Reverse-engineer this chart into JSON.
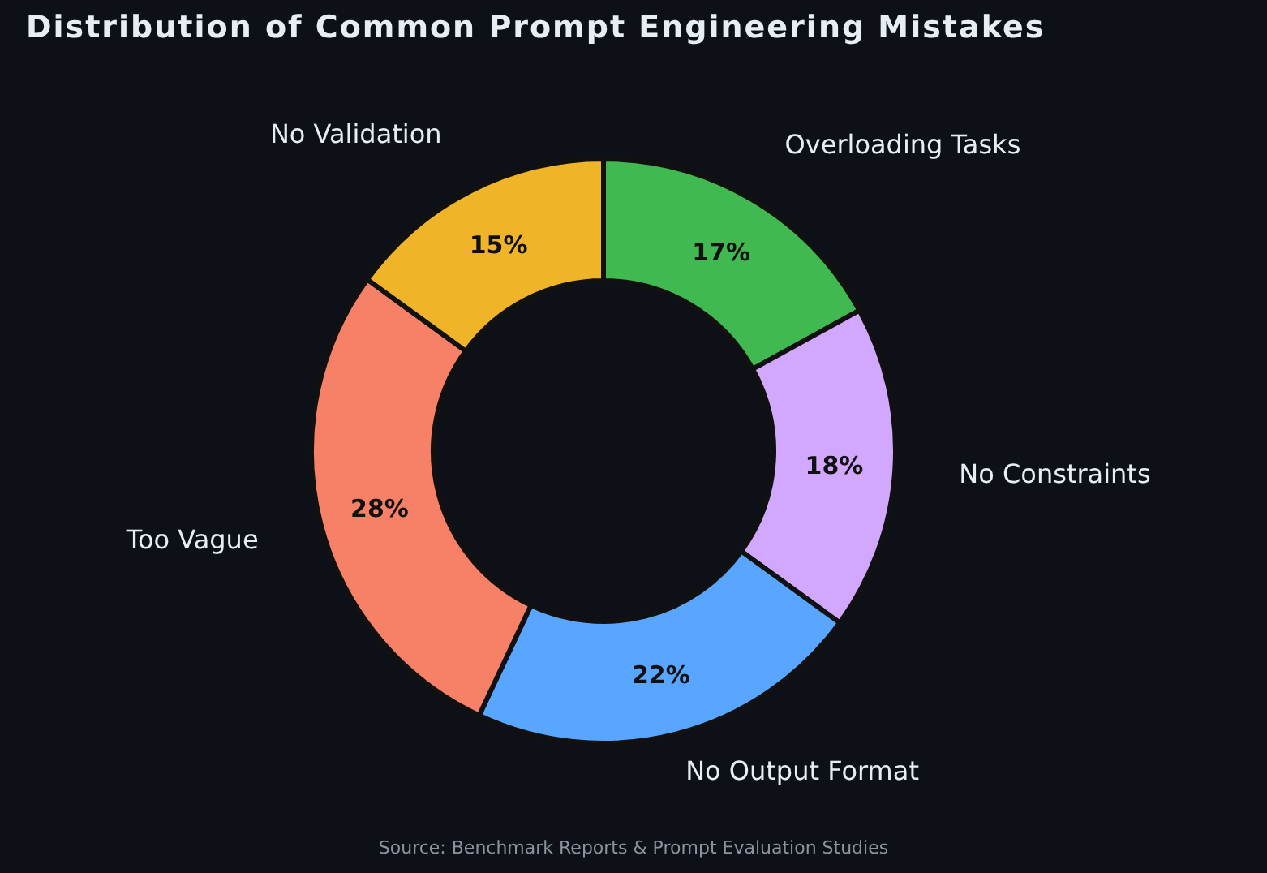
{
  "chart_data": {
    "type": "donut",
    "title": "Distribution of Common Prompt Engineering Mistakes",
    "categories": [
      "Overloading Tasks",
      "No Constraints",
      "No Output Format",
      "Too Vague",
      "No Validation"
    ],
    "values": [
      17,
      18,
      22,
      28,
      15
    ],
    "colors": [
      "#3fb950",
      "#d2a8ff",
      "#58a6ff",
      "#f78166",
      "#f0b429"
    ],
    "value_labels": [
      "17%",
      "18%",
      "22%",
      "28%",
      "15%"
    ],
    "annotations": [
      "Source: Benchmark Reports & Prompt Evaluation Studies"
    ]
  }
}
